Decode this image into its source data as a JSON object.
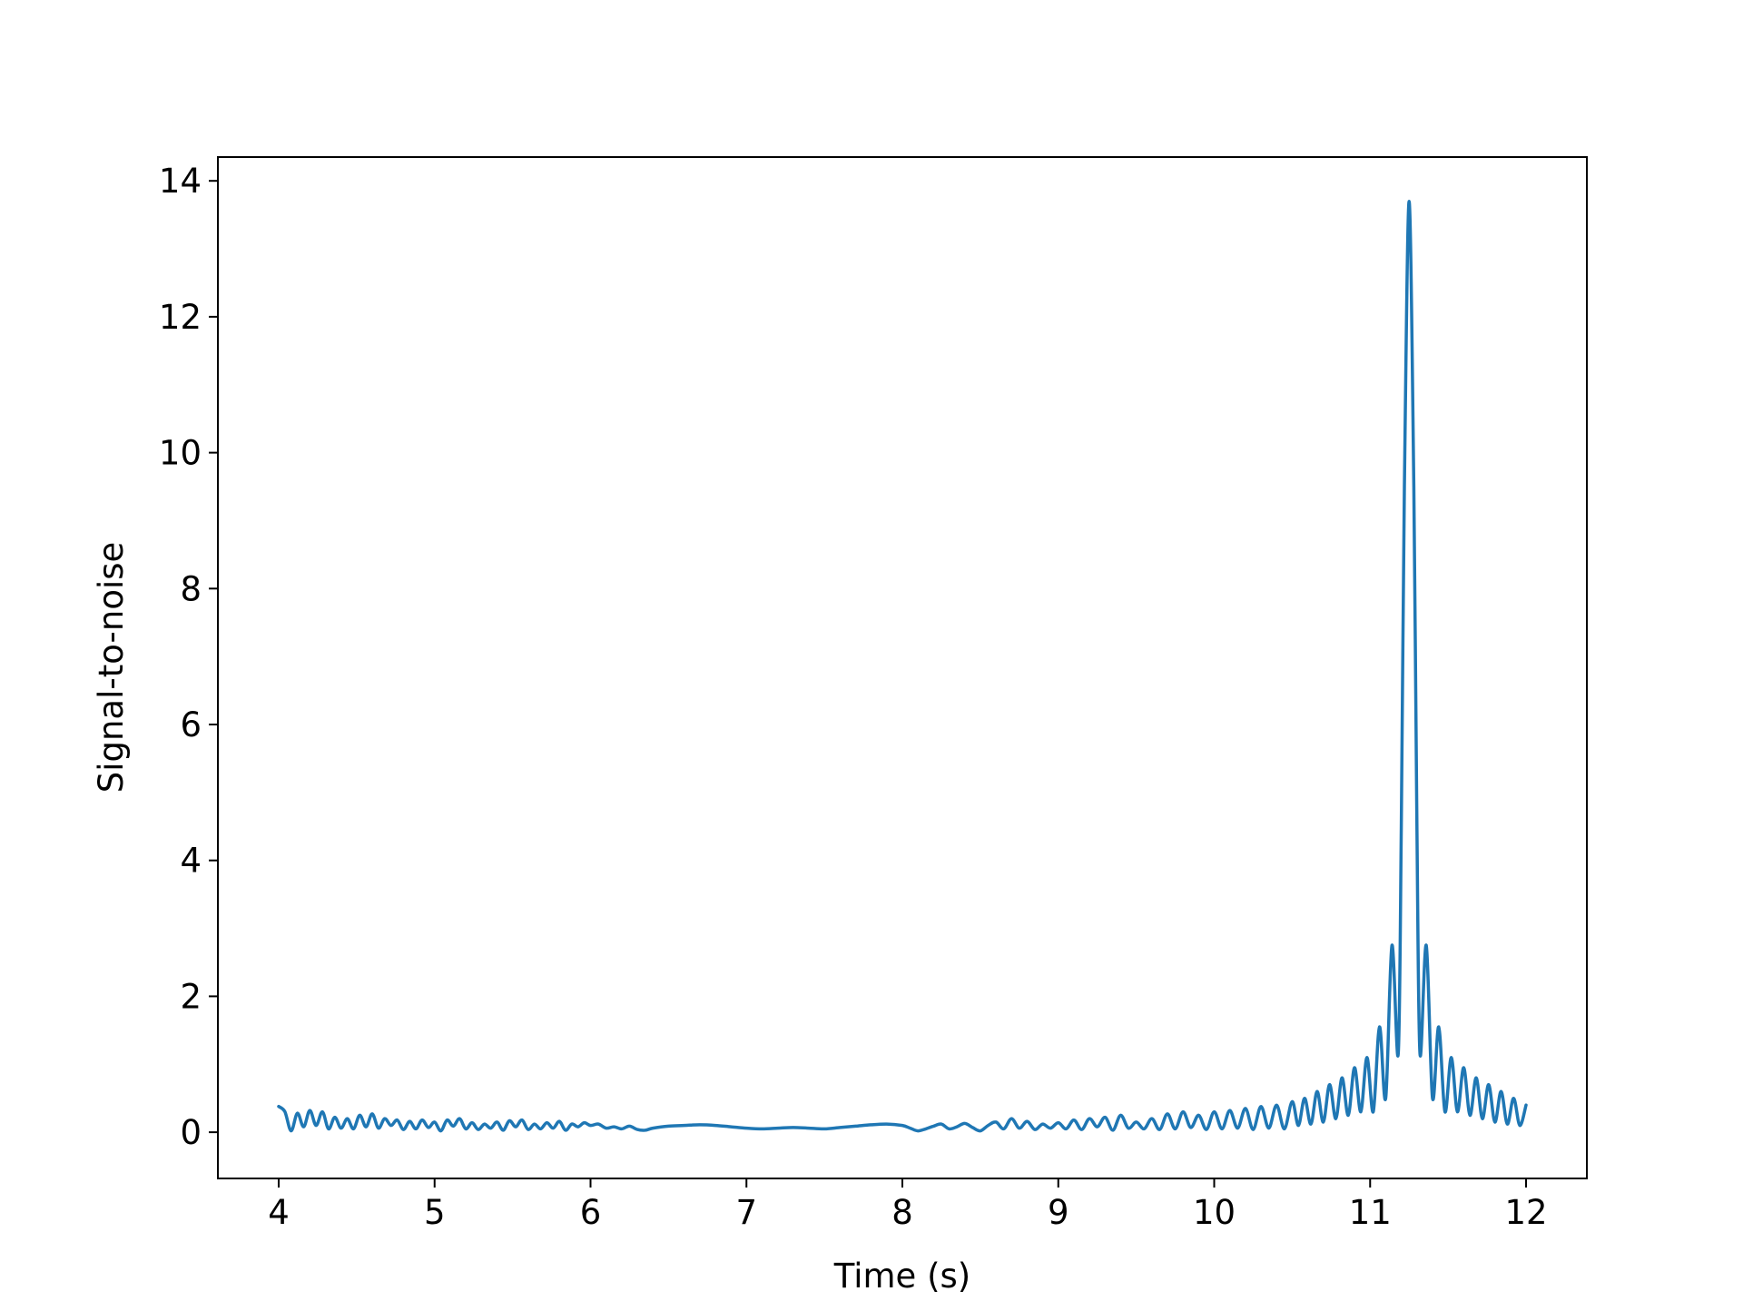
{
  "chart_data": {
    "type": "line",
    "title": "",
    "xlabel": "Time (s)",
    "ylabel": "Signal-to-noise",
    "xlim": [
      3.61,
      12.39
    ],
    "ylim": [
      -0.68,
      14.35
    ],
    "xticks": [
      4,
      5,
      6,
      7,
      8,
      9,
      10,
      11,
      12
    ],
    "yticks": [
      0,
      2,
      4,
      6,
      8,
      10,
      12,
      14
    ],
    "xtick_labels": [
      "4",
      "5",
      "6",
      "7",
      "8",
      "9",
      "10",
      "11",
      "12"
    ],
    "ytick_labels": [
      "0",
      "2",
      "4",
      "6",
      "8",
      "10",
      "12",
      "14"
    ],
    "grid": false,
    "legend": "none",
    "line_color": "#1f77b4",
    "peak": {
      "x": 11.25,
      "y": 13.7
    },
    "series": [
      {
        "x": [
          4.0,
          4.04,
          4.08,
          4.12,
          4.16,
          4.2,
          4.24,
          4.28,
          4.32,
          4.36,
          4.4,
          4.44,
          4.48,
          4.52,
          4.56,
          4.6,
          4.64,
          4.68,
          4.72,
          4.76,
          4.8,
          4.84,
          4.88,
          4.92,
          4.96,
          5.0,
          5.04,
          5.08,
          5.12,
          5.16,
          5.2,
          5.24,
          5.28,
          5.32,
          5.36,
          5.4,
          5.44,
          5.48,
          5.52,
          5.56,
          5.6,
          5.64,
          5.68,
          5.72,
          5.76,
          5.8,
          5.84,
          5.88,
          5.92,
          5.96,
          6.0,
          6.05,
          6.1,
          6.15,
          6.2,
          6.25,
          6.3,
          6.35,
          6.4,
          6.5,
          6.6,
          6.7,
          6.8,
          6.9,
          7.0,
          7.1,
          7.2,
          7.3,
          7.4,
          7.5,
          7.6,
          7.7,
          7.8,
          7.9,
          8.0,
          8.05,
          8.1,
          8.15,
          8.2,
          8.25,
          8.3,
          8.35,
          8.4,
          8.45,
          8.5,
          8.55,
          8.6,
          8.65,
          8.7,
          8.75,
          8.8,
          8.85,
          8.9,
          8.95,
          9.0,
          9.05,
          9.1,
          9.15,
          9.2,
          9.25,
          9.3,
          9.35,
          9.4,
          9.45,
          9.5,
          9.55,
          9.6,
          9.65,
          9.7,
          9.75,
          9.8,
          9.85,
          9.9,
          9.95,
          10.0,
          10.05,
          10.1,
          10.15,
          10.2,
          10.25,
          10.3,
          10.35,
          10.4,
          10.45,
          10.5,
          10.54,
          10.58,
          10.62,
          10.66,
          10.7,
          10.74,
          10.78,
          10.82,
          10.86,
          10.9,
          10.94,
          10.98,
          11.02,
          11.06,
          11.1,
          11.14,
          11.18,
          11.2,
          11.22,
          11.25,
          11.28,
          11.3,
          11.32,
          11.36,
          11.4,
          11.44,
          11.48,
          11.52,
          11.56,
          11.6,
          11.64,
          11.68,
          11.72,
          11.76,
          11.8,
          11.84,
          11.88,
          11.92,
          11.96,
          12.0
        ],
        "values": [
          0.38,
          0.3,
          0.02,
          0.28,
          0.08,
          0.32,
          0.1,
          0.3,
          0.05,
          0.22,
          0.06,
          0.2,
          0.05,
          0.25,
          0.08,
          0.27,
          0.06,
          0.2,
          0.1,
          0.18,
          0.04,
          0.16,
          0.05,
          0.18,
          0.07,
          0.15,
          0.02,
          0.18,
          0.09,
          0.2,
          0.05,
          0.14,
          0.04,
          0.12,
          0.06,
          0.15,
          0.03,
          0.17,
          0.08,
          0.18,
          0.04,
          0.12,
          0.05,
          0.14,
          0.06,
          0.16,
          0.03,
          0.12,
          0.08,
          0.14,
          0.1,
          0.12,
          0.06,
          0.08,
          0.05,
          0.09,
          0.04,
          0.03,
          0.06,
          0.09,
          0.1,
          0.11,
          0.1,
          0.08,
          0.06,
          0.05,
          0.06,
          0.07,
          0.06,
          0.05,
          0.07,
          0.09,
          0.11,
          0.12,
          0.1,
          0.06,
          0.02,
          0.05,
          0.09,
          0.12,
          0.05,
          0.08,
          0.13,
          0.07,
          0.02,
          0.1,
          0.15,
          0.05,
          0.2,
          0.06,
          0.16,
          0.04,
          0.12,
          0.06,
          0.14,
          0.05,
          0.18,
          0.04,
          0.2,
          0.08,
          0.22,
          0.03,
          0.25,
          0.06,
          0.15,
          0.05,
          0.2,
          0.04,
          0.27,
          0.05,
          0.3,
          0.07,
          0.25,
          0.04,
          0.3,
          0.05,
          0.32,
          0.06,
          0.35,
          0.04,
          0.38,
          0.06,
          0.4,
          0.05,
          0.45,
          0.1,
          0.5,
          0.12,
          0.6,
          0.15,
          0.7,
          0.2,
          0.8,
          0.25,
          0.95,
          0.3,
          1.1,
          0.3,
          1.55,
          0.5,
          2.75,
          1.15,
          4.5,
          9.5,
          13.7,
          9.5,
          4.5,
          1.15,
          2.75,
          0.5,
          1.55,
          0.3,
          1.1,
          0.3,
          0.95,
          0.25,
          0.8,
          0.2,
          0.7,
          0.15,
          0.6,
          0.12,
          0.5,
          0.1,
          0.4
        ]
      }
    ]
  }
}
